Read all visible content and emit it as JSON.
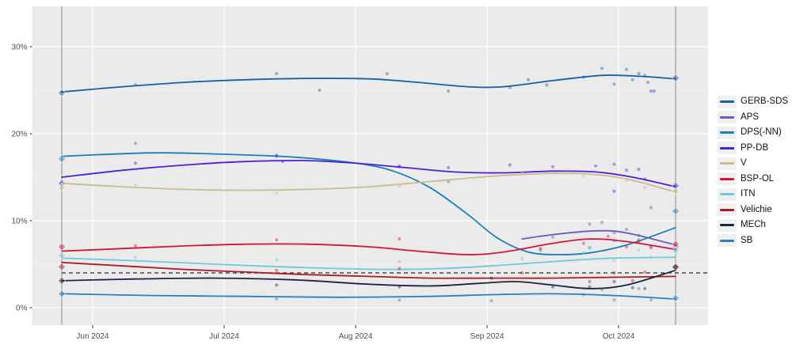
{
  "chart_data": {
    "type": "line",
    "title": "",
    "description": "Smoothed opinion-poll trend lines with individual poll dots and election-result diamonds, Jun 2024 - Oct 2024",
    "xlabel": "",
    "ylabel": "",
    "x_ticks": [
      {
        "label": "Jun 2024",
        "t": 0.0503
      },
      {
        "label": "Jul 2024",
        "t": 0.2645
      },
      {
        "label": "Aug 2024",
        "t": 0.4787
      },
      {
        "label": "Sep 2024",
        "t": 0.6929
      },
      {
        "label": "Oct 2024",
        "t": 0.9071
      }
    ],
    "y_ticks": [
      {
        "label": "0%",
        "value": 0
      },
      {
        "label": "10%",
        "value": 10
      },
      {
        "label": "20%",
        "value": 20
      },
      {
        "label": "30%",
        "value": 30
      }
    ],
    "y_minor": [
      5,
      15,
      25
    ],
    "ylim": [
      -2.0,
      34.6
    ],
    "grid": true,
    "legend_position": "right",
    "threshold": {
      "value": 4,
      "style": "dashed"
    },
    "event_lines": [
      {
        "name": "june-election",
        "t": 0
      },
      {
        "name": "october-election",
        "t": 1
      }
    ],
    "series": [
      {
        "name": "GERB-SDS",
        "color": "#1a5fa8",
        "trend": [
          [
            0,
            24.8
          ],
          [
            0.1,
            25.4
          ],
          [
            0.2,
            25.9
          ],
          [
            0.3,
            26.2
          ],
          [
            0.4,
            26.35
          ],
          [
            0.5,
            26.3
          ],
          [
            0.58,
            25.9
          ],
          [
            0.66,
            25.4
          ],
          [
            0.72,
            25.4
          ],
          [
            0.8,
            26.1
          ],
          [
            0.88,
            26.7
          ],
          [
            0.94,
            26.6
          ],
          [
            1,
            26.3
          ]
        ],
        "polls": [
          [
            0.12,
            25.6
          ],
          [
            0.35,
            26.9
          ],
          [
            0.42,
            25.0
          ],
          [
            0.53,
            26.9
          ],
          [
            0.63,
            24.9
          ],
          [
            0.73,
            25.3
          ],
          [
            0.76,
            26.2
          ],
          [
            0.79,
            25.6
          ],
          [
            0.85,
            26.5
          ],
          [
            0.88,
            27.5
          ],
          [
            0.9,
            25.7
          ],
          [
            0.92,
            27.4
          ],
          [
            0.93,
            26.2
          ],
          [
            0.94,
            26.9
          ],
          [
            0.95,
            26.7
          ],
          [
            0.955,
            25.9
          ],
          [
            0.96,
            24.9
          ]
        ],
        "result_start": 24.7,
        "result_end": 26.4
      },
      {
        "name": "APS",
        "color": "#6a5bc0",
        "trend": [
          [
            0.75,
            7.9
          ],
          [
            0.8,
            8.4
          ],
          [
            0.86,
            8.8
          ],
          [
            0.9,
            8.8
          ],
          [
            0.94,
            8.3
          ],
          [
            1,
            7.2
          ]
        ],
        "polls": [
          [
            0.8,
            8.1
          ],
          [
            0.86,
            9.6
          ],
          [
            0.88,
            9.8
          ],
          [
            0.9,
            8.6
          ],
          [
            0.92,
            9.0
          ],
          [
            0.94,
            7.8
          ],
          [
            0.96,
            7.1
          ]
        ],
        "result_start": null,
        "result_end": 7.0
      },
      {
        "name": "DPS(-NN)",
        "color": "#1c7fb5",
        "trend": [
          [
            0,
            17.4
          ],
          [
            0.1,
            17.7
          ],
          [
            0.17,
            17.8
          ],
          [
            0.28,
            17.6
          ],
          [
            0.38,
            17.3
          ],
          [
            0.48,
            16.6
          ],
          [
            0.54,
            15.7
          ],
          [
            0.6,
            13.8
          ],
          [
            0.66,
            10.8
          ],
          [
            0.71,
            8.0
          ],
          [
            0.76,
            6.4
          ],
          [
            0.81,
            6.1
          ],
          [
            0.86,
            6.3
          ],
          [
            0.92,
            7.2
          ],
          [
            1,
            9.2
          ]
        ],
        "polls": [
          [
            0.12,
            18.9
          ],
          [
            0.35,
            17.4
          ],
          [
            0.55,
            16.3
          ],
          [
            0.63,
            14.5
          ],
          [
            0.78,
            6.6
          ],
          [
            0.86,
            6.9
          ],
          [
            0.9,
            7.7
          ],
          [
            0.94,
            8.3
          ],
          [
            0.96,
            11.5
          ]
        ],
        "result_start": 17.1,
        "result_end": 11.1
      },
      {
        "name": "PP-DB",
        "color": "#4b23d6",
        "trend": [
          [
            0,
            15.0
          ],
          [
            0.1,
            15.8
          ],
          [
            0.2,
            16.4
          ],
          [
            0.3,
            16.8
          ],
          [
            0.4,
            16.9
          ],
          [
            0.48,
            16.6
          ],
          [
            0.56,
            16.1
          ],
          [
            0.64,
            15.6
          ],
          [
            0.72,
            15.5
          ],
          [
            0.8,
            15.7
          ],
          [
            0.87,
            15.6
          ],
          [
            0.93,
            15.0
          ],
          [
            1,
            13.9
          ]
        ],
        "polls": [
          [
            0.12,
            16.6
          ],
          [
            0.35,
            17.5
          ],
          [
            0.36,
            16.8
          ],
          [
            0.55,
            16.2
          ],
          [
            0.63,
            16.1
          ],
          [
            0.73,
            16.4
          ],
          [
            0.8,
            16.2
          ],
          [
            0.87,
            16.3
          ],
          [
            0.9,
            16.5
          ],
          [
            0.9,
            13.4
          ],
          [
            0.92,
            15.8
          ],
          [
            0.94,
            15.9
          ],
          [
            0.95,
            14.8
          ],
          [
            0.965,
            24.9
          ]
        ],
        "result_start": 14.3,
        "result_end": 14.0
      },
      {
        "name": "V",
        "color": "#c9bc8f",
        "trend": [
          [
            0,
            14.3
          ],
          [
            0.1,
            13.9
          ],
          [
            0.2,
            13.6
          ],
          [
            0.3,
            13.5
          ],
          [
            0.4,
            13.6
          ],
          [
            0.5,
            13.9
          ],
          [
            0.6,
            14.5
          ],
          [
            0.7,
            15.1
          ],
          [
            0.78,
            15.4
          ],
          [
            0.85,
            15.4
          ],
          [
            0.92,
            14.8
          ],
          [
            1,
            13.3
          ]
        ],
        "polls": [
          [
            0.12,
            14.1
          ],
          [
            0.35,
            13.2
          ],
          [
            0.55,
            14.0
          ],
          [
            0.75,
            15.6
          ],
          [
            0.85,
            15.1
          ],
          [
            0.92,
            14.6
          ],
          [
            0.95,
            13.8
          ]
        ],
        "result_start": 13.8,
        "result_end": 13.4
      },
      {
        "name": "BSP-OL",
        "color": "#d2153c",
        "trend": [
          [
            0,
            6.5
          ],
          [
            0.1,
            6.8
          ],
          [
            0.2,
            7.1
          ],
          [
            0.3,
            7.3
          ],
          [
            0.4,
            7.3
          ],
          [
            0.5,
            7.0
          ],
          [
            0.58,
            6.5
          ],
          [
            0.66,
            6.1
          ],
          [
            0.72,
            6.4
          ],
          [
            0.8,
            7.4
          ],
          [
            0.86,
            7.9
          ],
          [
            0.92,
            7.6
          ],
          [
            1,
            6.7
          ]
        ],
        "polls": [
          [
            0.12,
            7.1
          ],
          [
            0.35,
            7.8
          ],
          [
            0.55,
            7.9
          ],
          [
            0.78,
            6.8
          ],
          [
            0.85,
            7.4
          ],
          [
            0.89,
            8.2
          ],
          [
            0.92,
            7.0
          ],
          [
            0.94,
            7.6
          ],
          [
            0.96,
            6.9
          ]
        ],
        "result_start": 7.0,
        "result_end": 7.3
      },
      {
        "name": "ITN",
        "color": "#6ec9dd",
        "trend": [
          [
            0,
            5.7
          ],
          [
            0.12,
            5.4
          ],
          [
            0.25,
            5.0
          ],
          [
            0.4,
            4.6
          ],
          [
            0.52,
            4.4
          ],
          [
            0.62,
            4.5
          ],
          [
            0.72,
            4.9
          ],
          [
            0.82,
            5.4
          ],
          [
            0.9,
            5.7
          ],
          [
            1,
            5.8
          ]
        ],
        "polls": [
          [
            0.12,
            5.8
          ],
          [
            0.35,
            5.5
          ],
          [
            0.55,
            5.3
          ],
          [
            0.75,
            5.6
          ],
          [
            0.85,
            6.3
          ],
          [
            0.9,
            5.4
          ],
          [
            0.94,
            6.6
          ],
          [
            0.96,
            5.8
          ]
        ],
        "result_start": 6.0,
        "result_end": 6.6
      },
      {
        "name": "Velichie",
        "color": "#a81c28",
        "trend": [
          [
            0,
            5.2
          ],
          [
            0.1,
            4.8
          ],
          [
            0.2,
            4.4
          ],
          [
            0.3,
            4.1
          ],
          [
            0.4,
            3.8
          ],
          [
            0.5,
            3.6
          ],
          [
            0.6,
            3.4
          ],
          [
            0.7,
            3.4
          ],
          [
            0.8,
            3.4
          ],
          [
            0.9,
            3.5
          ],
          [
            1,
            3.6
          ]
        ],
        "polls": [
          [
            0.35,
            4.3
          ],
          [
            0.55,
            4.5
          ],
          [
            0.75,
            4.0
          ],
          [
            0.86,
            3.0
          ],
          [
            0.9,
            4.0
          ],
          [
            0.93,
            3.1
          ],
          [
            0.95,
            4.1
          ]
        ],
        "result_start": 4.7,
        "result_end": 4.6
      },
      {
        "name": "MECh",
        "color": "#1b2740",
        "trend": [
          [
            0,
            3.1
          ],
          [
            0.12,
            3.3
          ],
          [
            0.25,
            3.4
          ],
          [
            0.38,
            3.2
          ],
          [
            0.5,
            2.7
          ],
          [
            0.6,
            2.5
          ],
          [
            0.68,
            2.8
          ],
          [
            0.74,
            3.0
          ],
          [
            0.8,
            2.6
          ],
          [
            0.86,
            2.2
          ],
          [
            0.92,
            2.6
          ],
          [
            1,
            4.3
          ]
        ],
        "polls": [
          [
            0.35,
            2.6
          ],
          [
            0.55,
            2.4
          ],
          [
            0.7,
            3.4
          ],
          [
            0.8,
            2.4
          ],
          [
            0.86,
            2.4
          ],
          [
            0.9,
            3.0
          ],
          [
            0.93,
            2.3
          ],
          [
            0.95,
            2.2
          ]
        ],
        "result_start": 3.1,
        "result_end": 4.7
      },
      {
        "name": "SB",
        "color": "#2e7ebc",
        "trend": [
          [
            0,
            1.6
          ],
          [
            0.15,
            1.4
          ],
          [
            0.3,
            1.3
          ],
          [
            0.45,
            1.2
          ],
          [
            0.6,
            1.3
          ],
          [
            0.7,
            1.5
          ],
          [
            0.8,
            1.6
          ],
          [
            0.9,
            1.4
          ],
          [
            1,
            1.0
          ]
        ],
        "polls": [
          [
            0.35,
            1.0
          ],
          [
            0.55,
            0.9
          ],
          [
            0.7,
            0.8
          ],
          [
            0.85,
            1.5
          ],
          [
            0.88,
            2.1
          ],
          [
            0.9,
            0.9
          ],
          [
            0.94,
            2.2
          ],
          [
            0.96,
            0.9
          ]
        ],
        "result_start": 1.6,
        "result_end": 1.1
      }
    ],
    "colors": {
      "panel_background": "#ebebeb",
      "page_background": "#ffffff",
      "grid_major": "#ffffff",
      "grid_minor": "#f3f3f3",
      "axis_text": "#4d4d4d",
      "tick_mark": "#333333",
      "threshold_line": "#4a4a4a",
      "event_line": "#a9a9a9",
      "legend_key_background": "#f0f0f0",
      "legend_text": "#111111"
    }
  }
}
